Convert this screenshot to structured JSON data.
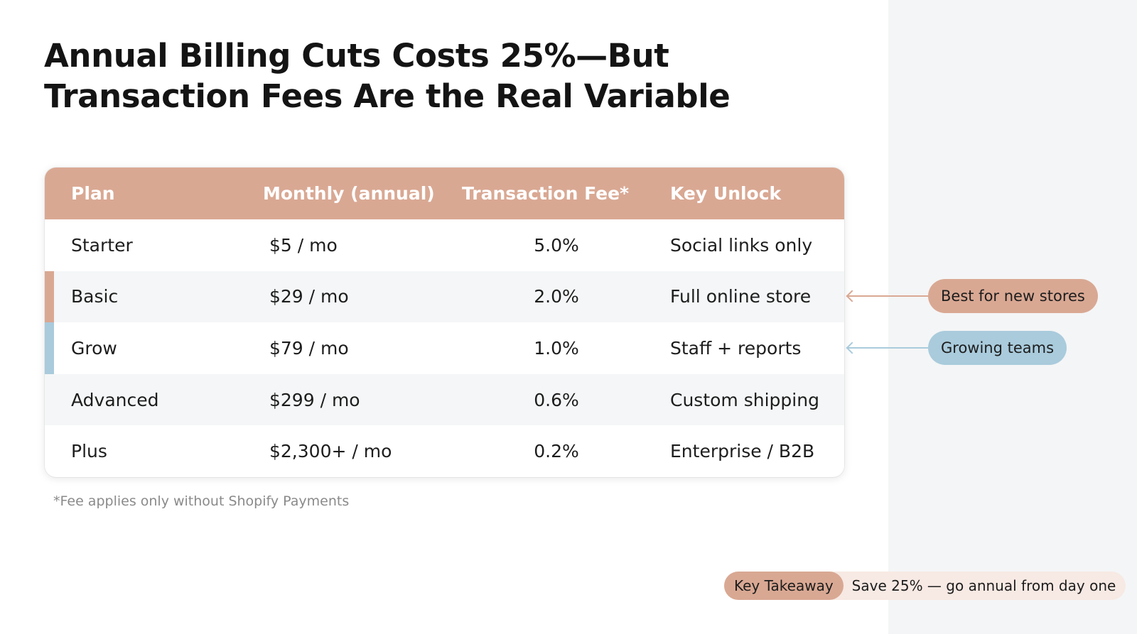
{
  "title_line1": "Annual Billing Cuts Costs 25%—But",
  "title_line2": "Transaction Fees Are the Real Variable",
  "colors": {
    "accent_peach": "#d9a893",
    "accent_blue": "#a9cbdc",
    "row_alt": "#f4f6f7",
    "side_panel": "#f4f5f6"
  },
  "table": {
    "headers": [
      "Plan",
      "Monthly (annual)",
      "Transaction Fee*",
      "Key Unlock"
    ],
    "rows": [
      {
        "plan": "Starter",
        "monthly": "$5 / mo",
        "fee": "5.0%",
        "unlock": "Social links only"
      },
      {
        "plan": "Basic",
        "monthly": "$29 / mo",
        "fee": "2.0%",
        "unlock": "Full online store"
      },
      {
        "plan": "Grow",
        "monthly": "$79 / mo",
        "fee": "1.0%",
        "unlock": "Staff + reports"
      },
      {
        "plan": "Advanced",
        "monthly": "$299 / mo",
        "fee": "0.6%",
        "unlock": "Custom shipping"
      },
      {
        "plan": "Plus",
        "monthly": "$2,300+ / mo",
        "fee": "0.2%",
        "unlock": "Enterprise / B2B"
      }
    ]
  },
  "footnote": "*Fee applies only without Shopify Payments",
  "callouts": {
    "basic": "Best for new stores",
    "grow": "Growing teams"
  },
  "takeaway": {
    "label": "Key Takeaway",
    "text": "Save 25% — go annual from day one"
  }
}
